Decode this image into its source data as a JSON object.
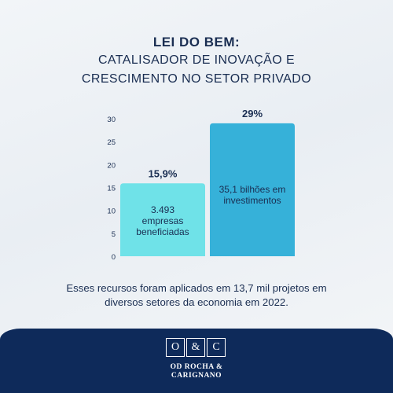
{
  "header": {
    "title_line1": "LEI DO BEM:",
    "title_line2": "CATALISADOR DE INOVAÇÃO E",
    "title_line3": "CRESCIMENTO NO SETOR PRIVADO"
  },
  "chart_data": {
    "type": "bar",
    "categories": [
      "3.493 empresas beneficiadas",
      "35,1 bilhões em investimentos"
    ],
    "values": [
      15.9,
      29
    ],
    "data_labels": [
      "15,9%",
      "29%"
    ],
    "bar_texts": [
      [
        "3.493",
        "empresas",
        "beneficiadas"
      ],
      [
        "35,1 bilhões em",
        "investimentos"
      ]
    ],
    "yticks": [
      0,
      5,
      10,
      15,
      20,
      25,
      30
    ],
    "ylim": [
      0,
      30
    ],
    "grid": false,
    "colors": [
      "#6fe2e8",
      "#36b1d9"
    ]
  },
  "caption": {
    "line1": "Esses recursos foram aplicados em 13,7 mil projetos em",
    "line2": "diversos setores da economia em 2022."
  },
  "footer": {
    "logo_letters": [
      "O",
      "&",
      "C"
    ],
    "name_line1": "OD ROCHA &",
    "name_line2": "CARIGNANO",
    "background": "#0e2a5a"
  },
  "colors": {
    "title": "#1a2e52"
  }
}
